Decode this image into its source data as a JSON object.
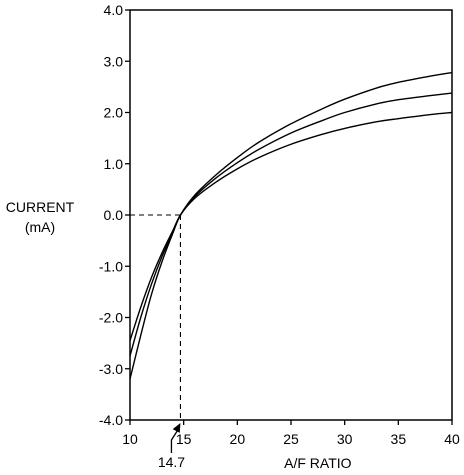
{
  "chart_data": {
    "type": "line",
    "title": "",
    "xlabel": "A/F RATIO",
    "ylabel": "CURRENT",
    "ylabel_unit": "(mA)",
    "xlim": [
      10,
      40
    ],
    "ylim": [
      -4.0,
      4.0
    ],
    "x_ticks": [
      10,
      15,
      20,
      25,
      30,
      35,
      40
    ],
    "x_tick_labels": [
      "10",
      "15",
      "20",
      "25",
      "30",
      "35",
      "40"
    ],
    "y_ticks": [
      4.0,
      3.0,
      2.0,
      1.0,
      0.0,
      -1.0,
      -2.0,
      -3.0,
      -4.0
    ],
    "y_tick_labels": [
      "4.0",
      "3.0",
      "2.0",
      "1.0",
      "0.0",
      "-1.0",
      "-2.0",
      "-3.0",
      "-4.0"
    ],
    "grid": false,
    "legend": "none",
    "series": [
      {
        "x": [
          10,
          11,
          12,
          13,
          14,
          14.7,
          16,
          18,
          20,
          22,
          25,
          28,
          30,
          33,
          35,
          38,
          40
        ],
        "y": [
          -3.2,
          -2.35,
          -1.55,
          -0.9,
          -0.35,
          0.0,
          0.38,
          0.78,
          1.12,
          1.42,
          1.78,
          2.08,
          2.26,
          2.48,
          2.59,
          2.71,
          2.78
        ]
      },
      {
        "x": [
          10,
          11,
          12,
          13,
          14,
          14.7,
          16,
          18,
          20,
          22,
          25,
          28,
          30,
          33,
          35,
          38,
          40
        ],
        "y": [
          -2.75,
          -2.0,
          -1.35,
          -0.8,
          -0.33,
          0.0,
          0.35,
          0.72,
          1.02,
          1.28,
          1.6,
          1.85,
          2.0,
          2.17,
          2.25,
          2.33,
          2.38
        ]
      },
      {
        "x": [
          10,
          11,
          12,
          13,
          14,
          14.7,
          16,
          18,
          20,
          22,
          25,
          28,
          30,
          33,
          35,
          38,
          40
        ],
        "y": [
          -2.45,
          -1.8,
          -1.22,
          -0.73,
          -0.3,
          0.0,
          0.32,
          0.64,
          0.9,
          1.12,
          1.38,
          1.58,
          1.69,
          1.82,
          1.88,
          1.96,
          2.0
        ]
      }
    ],
    "annotation": {
      "label": "14.7",
      "x": 14.7,
      "y": 0.0
    }
  }
}
